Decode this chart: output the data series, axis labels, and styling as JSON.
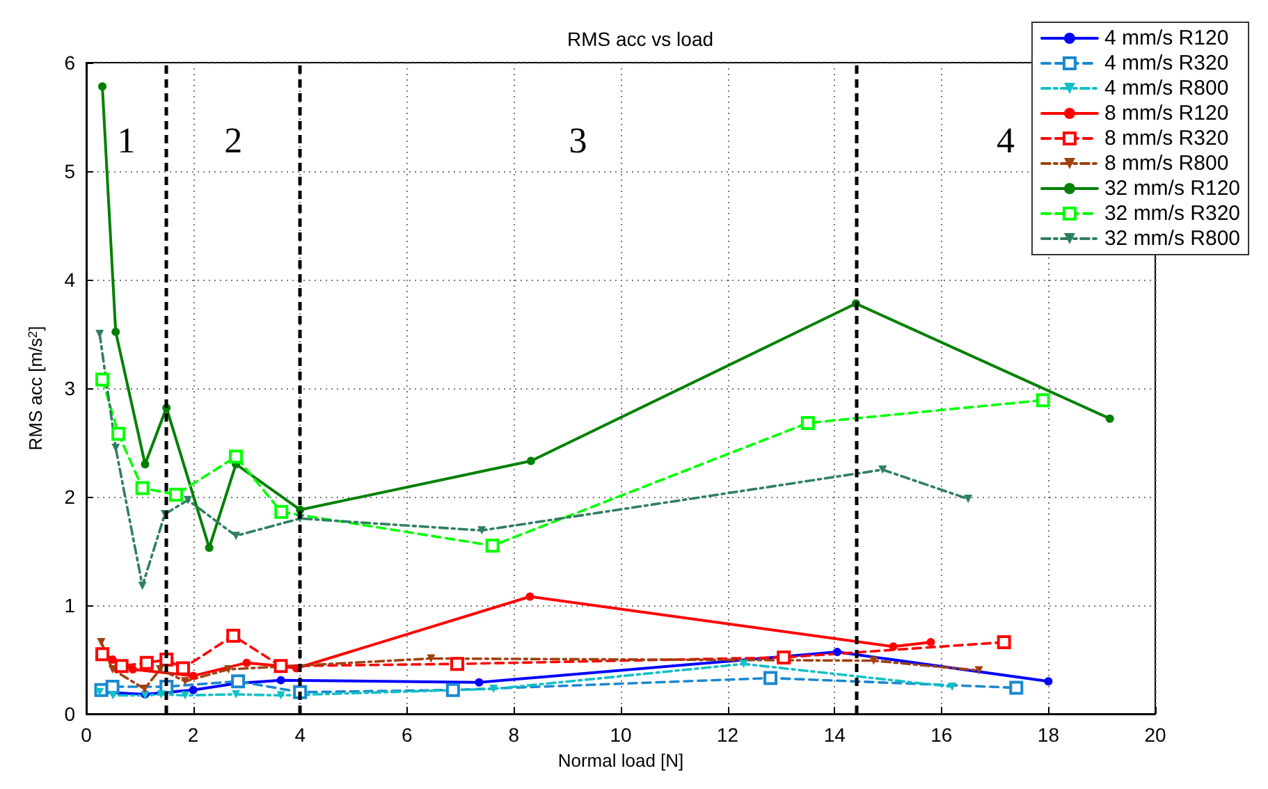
{
  "chart_data": {
    "type": "line",
    "title": "RMS acc vs load",
    "xlabel": "Normal load [N]",
    "ylabel": "RMS acc [m/s$^{2}$]",
    "xlim": [
      0,
      20
    ],
    "xticks": [
      0,
      2,
      4,
      6,
      8,
      10,
      12,
      14,
      16,
      18,
      20
    ],
    "ylim": [
      0,
      6
    ],
    "yticks": [
      0,
      1,
      2,
      3,
      4,
      5,
      6
    ],
    "grid": true,
    "legend": "top right",
    "ref_lines": [
      {
        "axis": "x",
        "value": 1.5,
        "label": null,
        "color": "#000000",
        "line_style": "dashed"
      },
      {
        "axis": "x",
        "value": 4,
        "label": null,
        "color": "#000000",
        "line_style": "dashed"
      },
      {
        "axis": "x",
        "value": 14.4,
        "label": null,
        "color": "#000000",
        "line_style": "dashed"
      }
    ],
    "annotations": [
      "1",
      "2",
      "3",
      "4"
    ],
    "series": [
      {
        "name": "4 mm/s R120",
        "color": "#0000ff",
        "marker": "circle",
        "line_style": "solid",
        "x": [
          0.3,
          1.1,
          2.0,
          2.8,
          3.64,
          7.35,
          14.05,
          18.0
        ],
        "values": [
          0.2,
          0.18,
          0.22,
          0.28,
          0.31,
          0.29,
          0.57,
          0.3
        ]
      },
      {
        "name": "4 mm/s R320",
        "color": "#1a88d0",
        "marker": "square",
        "line_style": "dashed",
        "x": [
          0.28,
          0.49,
          1.5,
          2.84,
          4.0,
          6.86,
          12.8,
          17.4
        ],
        "values": [
          0.22,
          0.25,
          0.25,
          0.3,
          0.2,
          0.22,
          0.33,
          0.24
        ]
      },
      {
        "name": "4 mm/s R800",
        "color": "#10c0c8",
        "marker": "triangle",
        "line_style": "dashdot",
        "x": [
          0.25,
          0.5,
          1.1,
          1.4,
          1.85,
          2.8,
          3.64,
          7.62,
          12.3,
          16.2
        ],
        "values": [
          0.2,
          0.17,
          0.17,
          0.18,
          0.17,
          0.18,
          0.17,
          0.23,
          0.46,
          0.25
        ]
      },
      {
        "name": "8 mm/s R120",
        "color": "#ff0000",
        "marker": "circle",
        "line_style": "solid",
        "x": [
          0.28,
          0.49,
          0.87,
          2.0,
          3.0,
          3.64,
          3.93,
          8.3,
          15.1,
          15.8
        ],
        "values": [
          0.57,
          0.5,
          0.41,
          0.35,
          0.47,
          0.44,
          0.42,
          1.08,
          0.62,
          0.66
        ]
      },
      {
        "name": "8 mm/s R320",
        "color": "#ff0000",
        "marker": "square",
        "line_style": "dashed",
        "x": [
          0.3,
          0.66,
          1.13,
          1.5,
          1.81,
          2.75,
          3.64,
          6.94,
          13.05,
          17.17
        ],
        "values": [
          0.55,
          0.44,
          0.47,
          0.5,
          0.42,
          0.72,
          0.44,
          0.46,
          0.52,
          0.66
        ]
      },
      {
        "name": "8 mm/s R800",
        "color": "#a04010",
        "marker": "triangle",
        "line_style": "dashdot",
        "x": [
          0.28,
          0.49,
          1.09,
          1.38,
          1.85,
          2.66,
          6.45,
          14.73,
          16.7
        ],
        "values": [
          0.66,
          0.41,
          0.23,
          0.41,
          0.3,
          0.41,
          0.51,
          0.49,
          0.4
        ]
      },
      {
        "name": "32 mm/s R120",
        "color": "#008000",
        "marker": "circle",
        "line_style": "solid",
        "x": [
          0.3,
          0.55,
          1.1,
          1.5,
          2.3,
          2.8,
          4.0,
          8.32,
          14.4,
          19.15
        ],
        "values": [
          5.78,
          3.52,
          2.3,
          2.82,
          1.53,
          2.3,
          1.88,
          2.33,
          3.78,
          2.72
        ]
      },
      {
        "name": "32 mm/s R320",
        "color": "#00ff00",
        "marker": "square",
        "line_style": "dashed",
        "x": [
          0.3,
          0.6,
          1.05,
          1.68,
          2.8,
          3.65,
          7.6,
          13.5,
          17.9
        ],
        "values": [
          3.08,
          2.58,
          2.08,
          2.02,
          2.37,
          1.86,
          1.55,
          2.68,
          2.89
        ]
      },
      {
        "name": "32 mm/s R800",
        "color": "#2f7f5f",
        "marker": "triangle",
        "line_style": "dashdot",
        "x": [
          0.25,
          0.55,
          1.05,
          1.47,
          1.9,
          2.8,
          4.0,
          7.4,
          14.9,
          16.5
        ],
        "values": [
          3.5,
          2.45,
          1.18,
          1.84,
          1.97,
          1.64,
          1.8,
          1.69,
          2.25,
          1.98
        ]
      }
    ]
  }
}
